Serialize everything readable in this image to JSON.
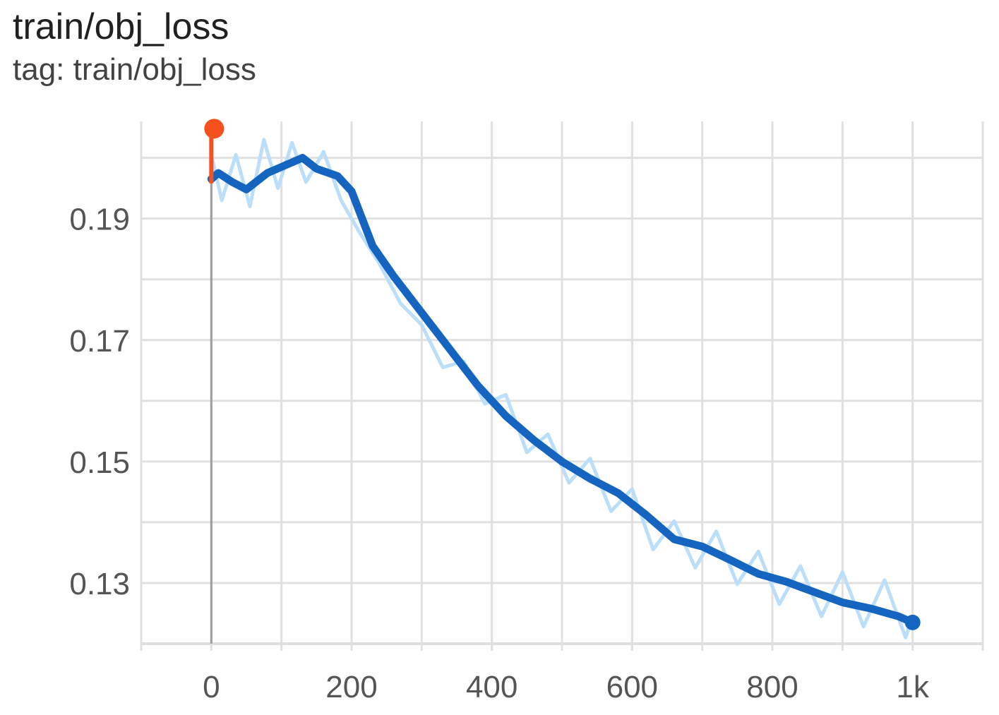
{
  "header": {
    "title": "train/obj_loss",
    "subtitle": "tag: train/obj_loss"
  },
  "colors": {
    "smoothed": "#1565c0",
    "raw": "#bbdefb",
    "marker": "#f4511e",
    "grid": "#e0e0e0",
    "zero_axis": "#9e9e9e"
  },
  "chart_data": {
    "type": "line",
    "title": "train/obj_loss",
    "subtitle": "tag: train/obj_loss",
    "xlabel": "",
    "ylabel": "",
    "xlim": [
      -100,
      1100
    ],
    "ylim": [
      0.12,
      0.206
    ],
    "x_ticks": [
      0,
      200,
      400,
      600,
      800,
      1000
    ],
    "x_tick_labels": [
      "0",
      "200",
      "400",
      "600",
      "800",
      "1k"
    ],
    "y_ticks": [
      0.13,
      0.15,
      0.17,
      0.19
    ],
    "y_tick_labels": [
      "0.13",
      "0.15",
      "0.17",
      "0.19"
    ],
    "grid": true,
    "legend": "none",
    "series": [
      {
        "role": "smoothed",
        "x": [
          0,
          10,
          30,
          50,
          80,
          100,
          130,
          150,
          180,
          200,
          230,
          260,
          300,
          340,
          380,
          420,
          460,
          500,
          540,
          580,
          620,
          660,
          700,
          740,
          780,
          820,
          860,
          900,
          940,
          980,
          1000
        ],
        "y": [
          0.1965,
          0.1975,
          0.196,
          0.1948,
          0.1975,
          0.1985,
          0.2,
          0.1982,
          0.197,
          0.1945,
          0.1855,
          0.1805,
          0.1745,
          0.1685,
          0.1625,
          0.1575,
          0.1535,
          0.15,
          0.1472,
          0.1448,
          0.1412,
          0.1372,
          0.136,
          0.1338,
          0.1315,
          0.1302,
          0.1285,
          0.1268,
          0.1258,
          0.1245,
          0.1235
        ]
      },
      {
        "role": "raw",
        "x": [
          0,
          15,
          35,
          55,
          75,
          95,
          115,
          135,
          160,
          185,
          210,
          240,
          270,
          300,
          330,
          360,
          390,
          420,
          450,
          480,
          510,
          540,
          570,
          600,
          630,
          660,
          690,
          720,
          750,
          780,
          810,
          840,
          870,
          900,
          930,
          960,
          990,
          1000
        ],
        "y": [
          0.2005,
          0.193,
          0.2005,
          0.192,
          0.203,
          0.195,
          0.2025,
          0.196,
          0.201,
          0.193,
          0.188,
          0.1825,
          0.176,
          0.1725,
          0.1655,
          0.1665,
          0.1595,
          0.161,
          0.1515,
          0.1545,
          0.1465,
          0.1505,
          0.1418,
          0.1455,
          0.1355,
          0.1402,
          0.1325,
          0.1385,
          0.1298,
          0.1352,
          0.1265,
          0.1328,
          0.1245,
          0.1318,
          0.1228,
          0.1305,
          0.121,
          0.1245
        ]
      }
    ],
    "marker": {
      "x": 0,
      "y": 0.2048
    }
  }
}
